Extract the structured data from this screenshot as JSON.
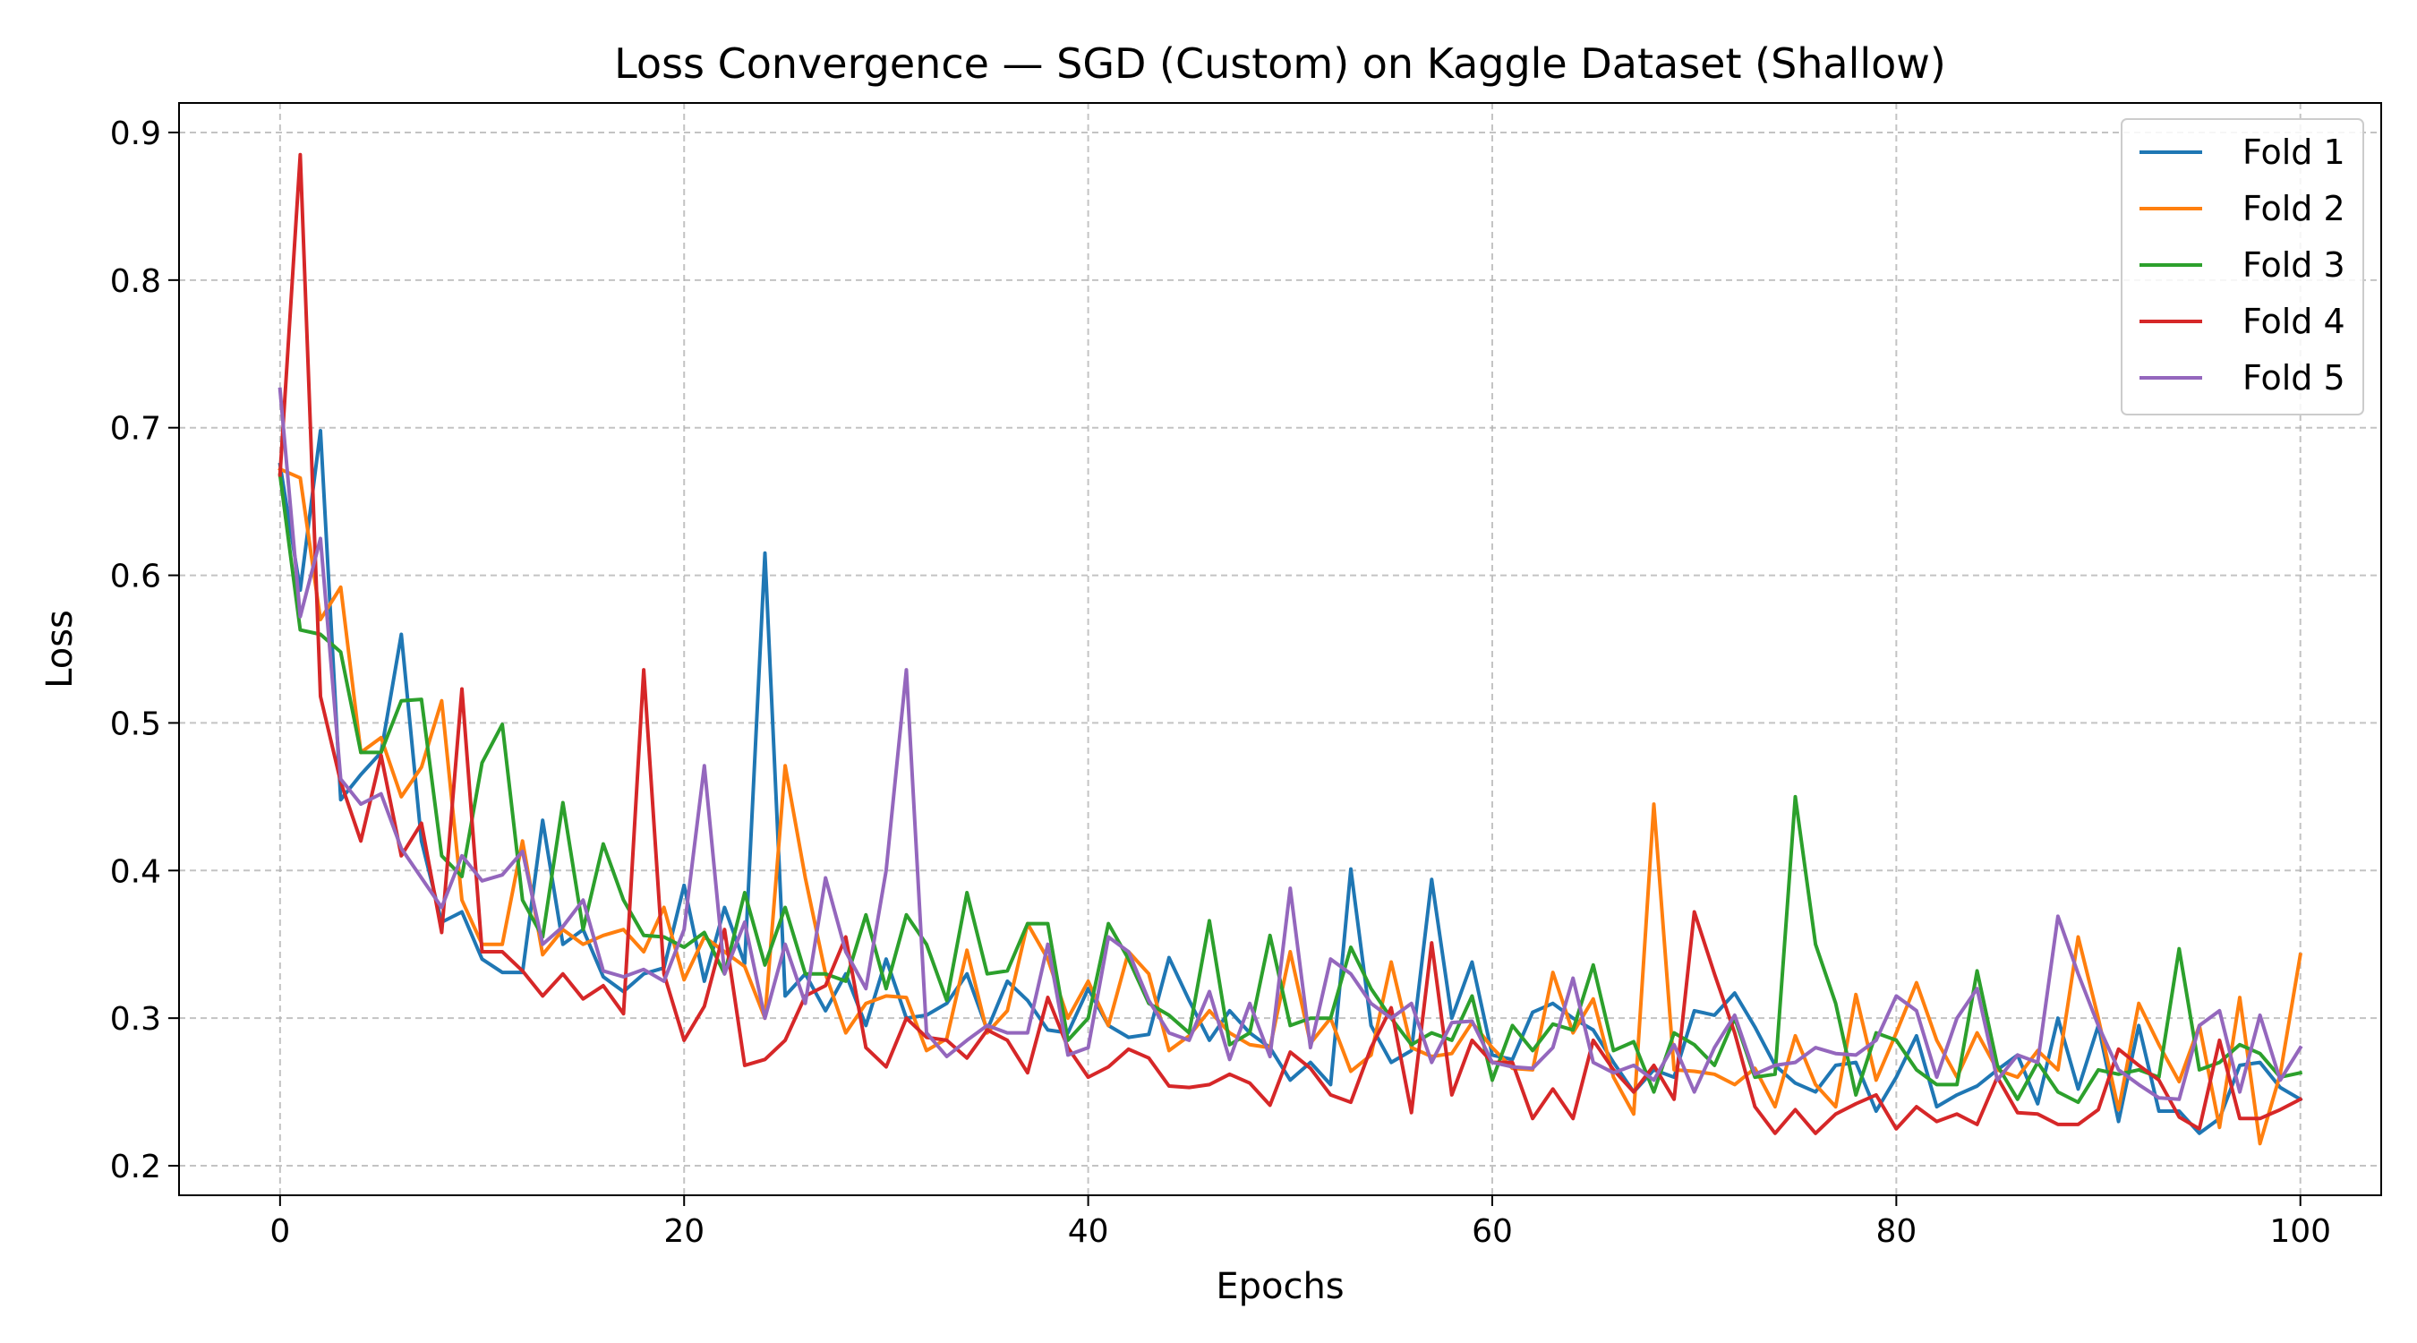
{
  "chart_data": {
    "type": "line",
    "title": "Loss Convergence — SGD (Custom) on Kaggle Dataset (Shallow)",
    "xlabel": "Epochs",
    "ylabel": "Loss",
    "xlim": [
      -5,
      104
    ],
    "ylim": [
      0.18,
      0.92
    ],
    "grid": true,
    "legend_position": "top-right",
    "x_ticks": [
      0,
      20,
      40,
      60,
      80,
      100
    ],
    "y_ticks": [
      0.2,
      0.3,
      0.4,
      0.5,
      0.6,
      0.7,
      0.8,
      0.9
    ],
    "x_tick_labels": [
      "0",
      "20",
      "40",
      "60",
      "80",
      "100"
    ],
    "y_tick_labels": [
      "0.2",
      "0.3",
      "0.4",
      "0.5",
      "0.6",
      "0.7",
      "0.8",
      "0.9"
    ],
    "series": [
      {
        "name": "Fold 1",
        "color": "#1f77b4",
        "values": [
          0.675,
          0.59,
          0.698,
          0.448,
          0.465,
          0.48,
          0.56,
          0.42,
          0.365,
          0.372,
          0.34,
          0.331,
          0.331,
          0.434,
          0.35,
          0.36,
          0.328,
          0.318,
          0.33,
          0.334,
          0.39,
          0.325,
          0.375,
          0.337,
          0.615,
          0.315,
          0.33,
          0.305,
          0.33,
          0.295,
          0.34,
          0.3,
          0.302,
          0.31,
          0.33,
          0.292,
          0.325,
          0.312,
          0.292,
          0.29,
          0.32,
          0.295,
          0.287,
          0.289,
          0.341,
          0.312,
          0.285,
          0.305,
          0.29,
          0.28,
          0.258,
          0.27,
          0.255,
          0.401,
          0.295,
          0.27,
          0.278,
          0.394,
          0.3,
          0.338,
          0.275,
          0.272,
          0.304,
          0.31,
          0.3,
          0.292,
          0.27,
          0.25,
          0.265,
          0.26,
          0.305,
          0.302,
          0.317,
          0.294,
          0.268,
          0.256,
          0.25,
          0.268,
          0.27,
          0.237,
          0.26,
          0.288,
          0.24,
          0.248,
          0.254,
          0.265,
          0.275,
          0.242,
          0.3,
          0.252,
          0.295,
          0.23,
          0.295,
          0.237,
          0.237,
          0.222,
          0.232,
          0.268,
          0.27,
          0.253,
          0.245
        ]
      },
      {
        "name": "Fold 2",
        "color": "#ff7f0e",
        "values": [
          0.672,
          0.666,
          0.57,
          0.592,
          0.48,
          0.49,
          0.45,
          0.47,
          0.515,
          0.38,
          0.35,
          0.35,
          0.42,
          0.343,
          0.36,
          0.35,
          0.356,
          0.36,
          0.345,
          0.375,
          0.326,
          0.355,
          0.345,
          0.335,
          0.3,
          0.471,
          0.395,
          0.33,
          0.29,
          0.31,
          0.315,
          0.314,
          0.278,
          0.286,
          0.346,
          0.29,
          0.305,
          0.364,
          0.34,
          0.3,
          0.325,
          0.295,
          0.345,
          0.33,
          0.278,
          0.288,
          0.305,
          0.29,
          0.282,
          0.28,
          0.345,
          0.283,
          0.3,
          0.264,
          0.275,
          0.338,
          0.28,
          0.274,
          0.276,
          0.297,
          0.28,
          0.266,
          0.265,
          0.331,
          0.29,
          0.313,
          0.26,
          0.235,
          0.445,
          0.265,
          0.264,
          0.262,
          0.255,
          0.266,
          0.24,
          0.288,
          0.255,
          0.24,
          0.316,
          0.258,
          0.29,
          0.324,
          0.285,
          0.26,
          0.29,
          0.265,
          0.26,
          0.278,
          0.265,
          0.355,
          0.3,
          0.238,
          0.31,
          0.282,
          0.257,
          0.295,
          0.226,
          0.314,
          0.215,
          0.262,
          0.343
        ]
      },
      {
        "name": "Fold 3",
        "color": "#2ca02c",
        "values": [
          0.668,
          0.563,
          0.56,
          0.548,
          0.48,
          0.48,
          0.515,
          0.516,
          0.41,
          0.396,
          0.473,
          0.499,
          0.38,
          0.355,
          0.446,
          0.36,
          0.418,
          0.38,
          0.356,
          0.355,
          0.348,
          0.358,
          0.33,
          0.385,
          0.336,
          0.375,
          0.33,
          0.33,
          0.325,
          0.37,
          0.32,
          0.37,
          0.35,
          0.312,
          0.385,
          0.33,
          0.332,
          0.364,
          0.364,
          0.285,
          0.3,
          0.364,
          0.34,
          0.31,
          0.302,
          0.29,
          0.366,
          0.282,
          0.29,
          0.356,
          0.295,
          0.3,
          0.3,
          0.348,
          0.32,
          0.3,
          0.282,
          0.29,
          0.285,
          0.315,
          0.258,
          0.295,
          0.278,
          0.296,
          0.292,
          0.336,
          0.278,
          0.284,
          0.25,
          0.29,
          0.282,
          0.268,
          0.3,
          0.26,
          0.262,
          0.45,
          0.35,
          0.31,
          0.248,
          0.29,
          0.285,
          0.265,
          0.255,
          0.255,
          0.332,
          0.268,
          0.245,
          0.27,
          0.25,
          0.243,
          0.265,
          0.262,
          0.265,
          0.26,
          0.347,
          0.265,
          0.27,
          0.282,
          0.276,
          0.26,
          0.263
        ]
      },
      {
        "name": "Fold 4",
        "color": "#d62728",
        "values": [
          0.668,
          0.885,
          0.518,
          0.46,
          0.42,
          0.478,
          0.41,
          0.432,
          0.358,
          0.523,
          0.345,
          0.345,
          0.332,
          0.315,
          0.33,
          0.313,
          0.322,
          0.303,
          0.536,
          0.33,
          0.285,
          0.308,
          0.36,
          0.268,
          0.272,
          0.285,
          0.315,
          0.322,
          0.355,
          0.28,
          0.267,
          0.3,
          0.287,
          0.285,
          0.273,
          0.292,
          0.285,
          0.263,
          0.314,
          0.28,
          0.26,
          0.267,
          0.279,
          0.273,
          0.254,
          0.253,
          0.255,
          0.262,
          0.256,
          0.241,
          0.277,
          0.266,
          0.248,
          0.243,
          0.28,
          0.307,
          0.236,
          0.351,
          0.248,
          0.285,
          0.27,
          0.27,
          0.232,
          0.252,
          0.232,
          0.285,
          0.265,
          0.25,
          0.268,
          0.245,
          0.372,
          0.33,
          0.29,
          0.24,
          0.222,
          0.238,
          0.222,
          0.235,
          0.242,
          0.248,
          0.225,
          0.24,
          0.23,
          0.235,
          0.228,
          0.26,
          0.236,
          0.235,
          0.228,
          0.228,
          0.238,
          0.279,
          0.268,
          0.258,
          0.233,
          0.225,
          0.285,
          0.232,
          0.232,
          0.238,
          0.245
        ]
      },
      {
        "name": "Fold 5",
        "color": "#9467bd",
        "values": [
          0.726,
          0.572,
          0.625,
          0.462,
          0.445,
          0.452,
          0.415,
          0.395,
          0.375,
          0.41,
          0.393,
          0.397,
          0.413,
          0.35,
          0.362,
          0.38,
          0.332,
          0.328,
          0.333,
          0.325,
          0.36,
          0.471,
          0.33,
          0.365,
          0.3,
          0.35,
          0.31,
          0.395,
          0.345,
          0.32,
          0.4,
          0.536,
          0.29,
          0.274,
          0.285,
          0.295,
          0.29,
          0.29,
          0.35,
          0.275,
          0.28,
          0.355,
          0.345,
          0.312,
          0.29,
          0.285,
          0.318,
          0.272,
          0.31,
          0.274,
          0.388,
          0.28,
          0.34,
          0.33,
          0.31,
          0.3,
          0.31,
          0.27,
          0.297,
          0.298,
          0.27,
          0.267,
          0.266,
          0.28,
          0.327,
          0.27,
          0.263,
          0.268,
          0.258,
          0.282,
          0.25,
          0.28,
          0.302,
          0.262,
          0.268,
          0.27,
          0.28,
          0.276,
          0.275,
          0.285,
          0.315,
          0.305,
          0.26,
          0.3,
          0.32,
          0.258,
          0.275,
          0.27,
          0.369,
          0.33,
          0.295,
          0.265,
          0.255,
          0.246,
          0.245,
          0.295,
          0.305,
          0.25,
          0.302,
          0.258,
          0.28
        ]
      }
    ]
  }
}
